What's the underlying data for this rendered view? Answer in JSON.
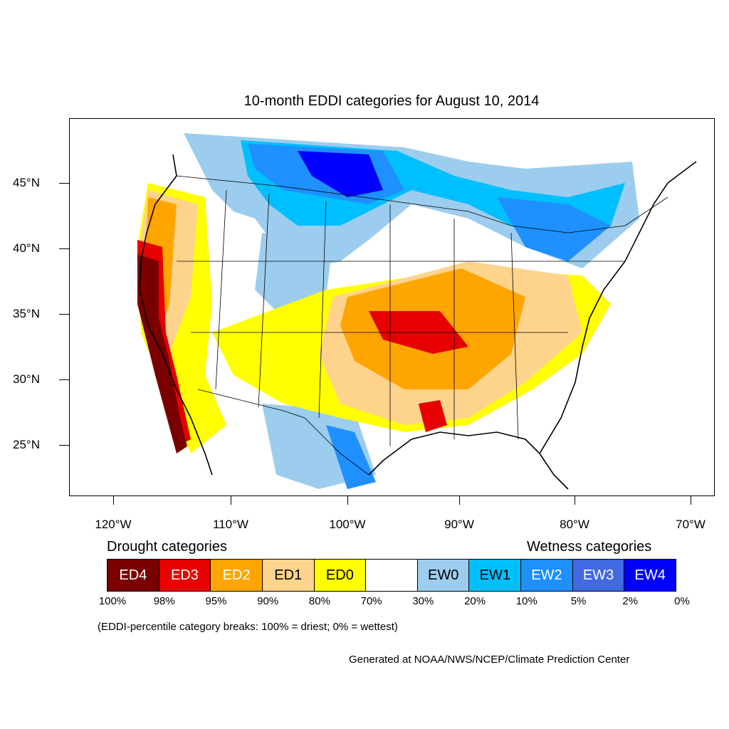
{
  "title": "10-month EDDI categories for August 10, 2014",
  "axes": {
    "lat_labels": [
      "45°N",
      "40°N",
      "35°N",
      "30°N",
      "25°N"
    ],
    "lon_labels": [
      "120°W",
      "110°W",
      "100°W",
      "90°W",
      "80°W",
      "70°W"
    ]
  },
  "legend": {
    "drought_title": "Drought categories",
    "wetness_title": "Wetness categories",
    "categories": [
      {
        "label": "ED4",
        "color": "#7a0000",
        "text_color": "#ffffff"
      },
      {
        "label": "ED3",
        "color": "#e60000",
        "text_color": "#ffffff"
      },
      {
        "label": "ED2",
        "color": "#ffa500",
        "text_color": "#ffffff"
      },
      {
        "label": "ED1",
        "color": "#fed38c",
        "text_color": "#000000"
      },
      {
        "label": "ED0",
        "color": "#ffff00",
        "text_color": "#000000"
      },
      {
        "label": "",
        "color": "#ffffff",
        "text_color": "#000000"
      },
      {
        "label": "EW0",
        "color": "#9dcdee",
        "text_color": "#000000"
      },
      {
        "label": "EW1",
        "color": "#00bfff",
        "text_color": "#000000"
      },
      {
        "label": "EW2",
        "color": "#1e90ff",
        "text_color": "#ffffff"
      },
      {
        "label": "EW3",
        "color": "#4169e1",
        "text_color": "#ffffff"
      },
      {
        "label": "EW4",
        "color": "#0000ff",
        "text_color": "#ffffff"
      }
    ],
    "percentiles": [
      "100%",
      "98%",
      "95%",
      "90%",
      "80%",
      "70%",
      "30%",
      "20%",
      "10%",
      "5%",
      "2%",
      "0%"
    ]
  },
  "note": "(EDDI-percentile category breaks: 100% = driest; 0% = wettest)",
  "credit": "Generated at NOAA/NWS/NCEP/Climate Prediction Center"
}
